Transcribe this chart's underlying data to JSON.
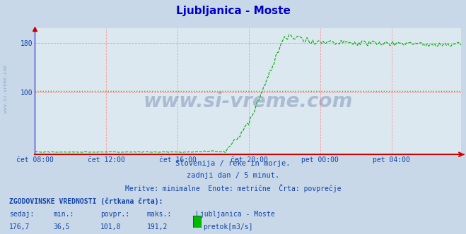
{
  "title": "Ljubljanica - Moste",
  "title_color": "#0000cc",
  "background_color": "#c8d8e8",
  "plot_bg_color": "#dce8f0",
  "grid_color": "#ff9999",
  "avg_line_value": 101.8,
  "avg_line_color": "#00bb00",
  "line_color": "#00aa00",
  "x_axis_color": "#cc0000",
  "left_spine_color": "#4444cc",
  "x_ticks_labels": [
    "čet 08:00",
    "čet 12:00",
    "čet 16:00",
    "čet 20:00",
    "pet 00:00",
    "pet 04:00"
  ],
  "x_ticks_positions": [
    0,
    48,
    96,
    144,
    192,
    240
  ],
  "y_ticks_shown": [
    100,
    180
  ],
  "ylim": [
    -2,
    205
  ],
  "xlim": [
    0,
    287
  ],
  "total_points": 288,
  "subtitle1": "Slovenija / reke in morje.",
  "subtitle2": "zadnji dan / 5 minut.",
  "subtitle3": "Meritve: minimalne  Enote: metrične  Črta: povprečje",
  "footer_bold": "ZGODOVINSKE VREDNOSTI (črtkana črta):",
  "footer_labels": [
    "sedaj:",
    "min.:",
    "povpr.:",
    "maks.:"
  ],
  "footer_values": [
    "176,7",
    "36,5",
    "101,8",
    "191,2"
  ],
  "footer_series": "Ljubljanica - Moste",
  "footer_unit": "pretok[m3/s]",
  "watermark": "www.si-vreme.com",
  "watermark_color": "#1a3a7a",
  "watermark_alpha": 0.25,
  "legend_color": "#00bb00",
  "text_color": "#1144aa",
  "tick_label_color": "#1144aa",
  "side_watermark_color": "#3366aa",
  "side_watermark_alpha": 0.4
}
